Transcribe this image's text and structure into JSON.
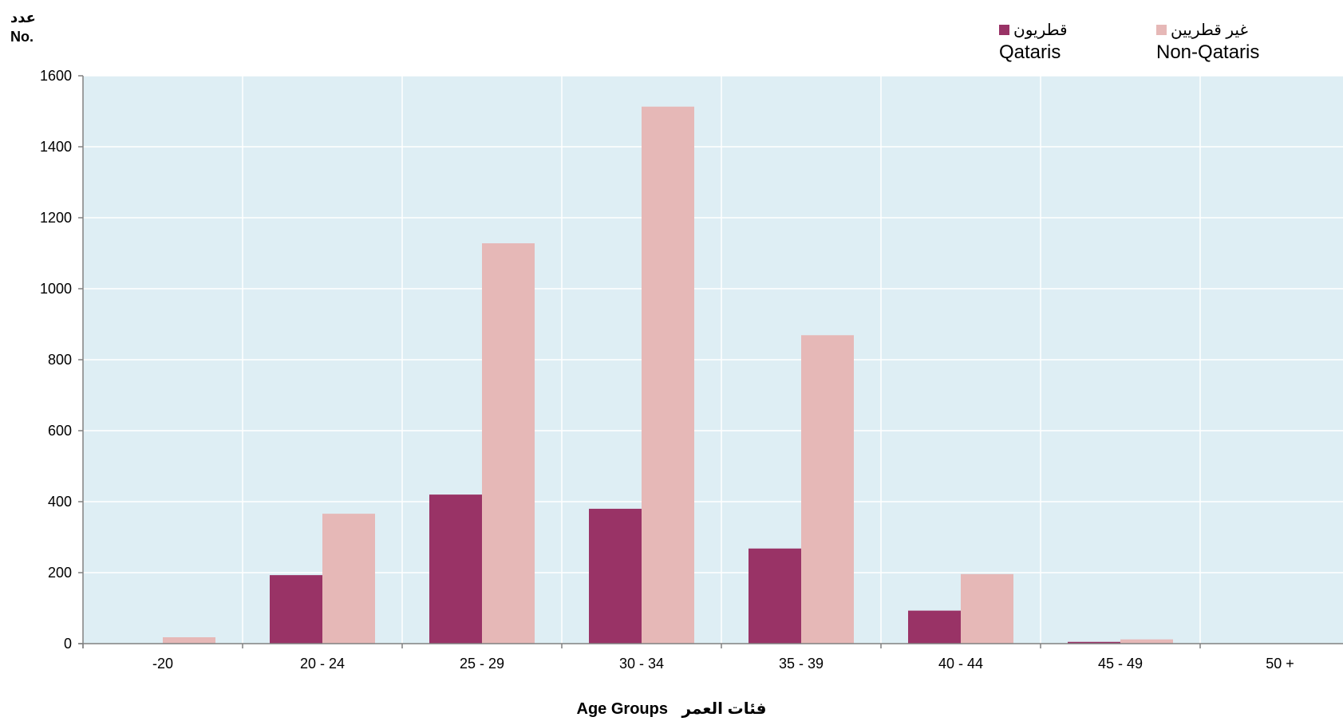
{
  "chart_data": {
    "type": "bar",
    "ylabel_ar": "عدد",
    "ylabel": "No.",
    "xlabel_en": "Age Groups",
    "xlabel_ar": "فئات العمر",
    "categories": [
      "-20",
      "20 - 24",
      "25 - 29",
      "30 - 34",
      "35 - 39",
      "40 - 44",
      "45 - 49",
      "50 +"
    ],
    "series": [
      {
        "name": "Qataris",
        "name_ar": "قطريون",
        "color": "#993366",
        "values": [
          0,
          193,
          420,
          380,
          268,
          93,
          5,
          0
        ]
      },
      {
        "name": "Non-Qataris",
        "name_ar": "غير قطريين",
        "color": "#e6b8b7",
        "values": [
          18,
          366,
          1128,
          1513,
          869,
          196,
          12,
          0
        ]
      }
    ],
    "ylim": [
      0,
      1600
    ],
    "yticks": [
      0,
      200,
      400,
      600,
      800,
      1000,
      1200,
      1400,
      1600
    ],
    "plot_background": "#deeef4",
    "grid": true,
    "legend_position": "top-right"
  }
}
